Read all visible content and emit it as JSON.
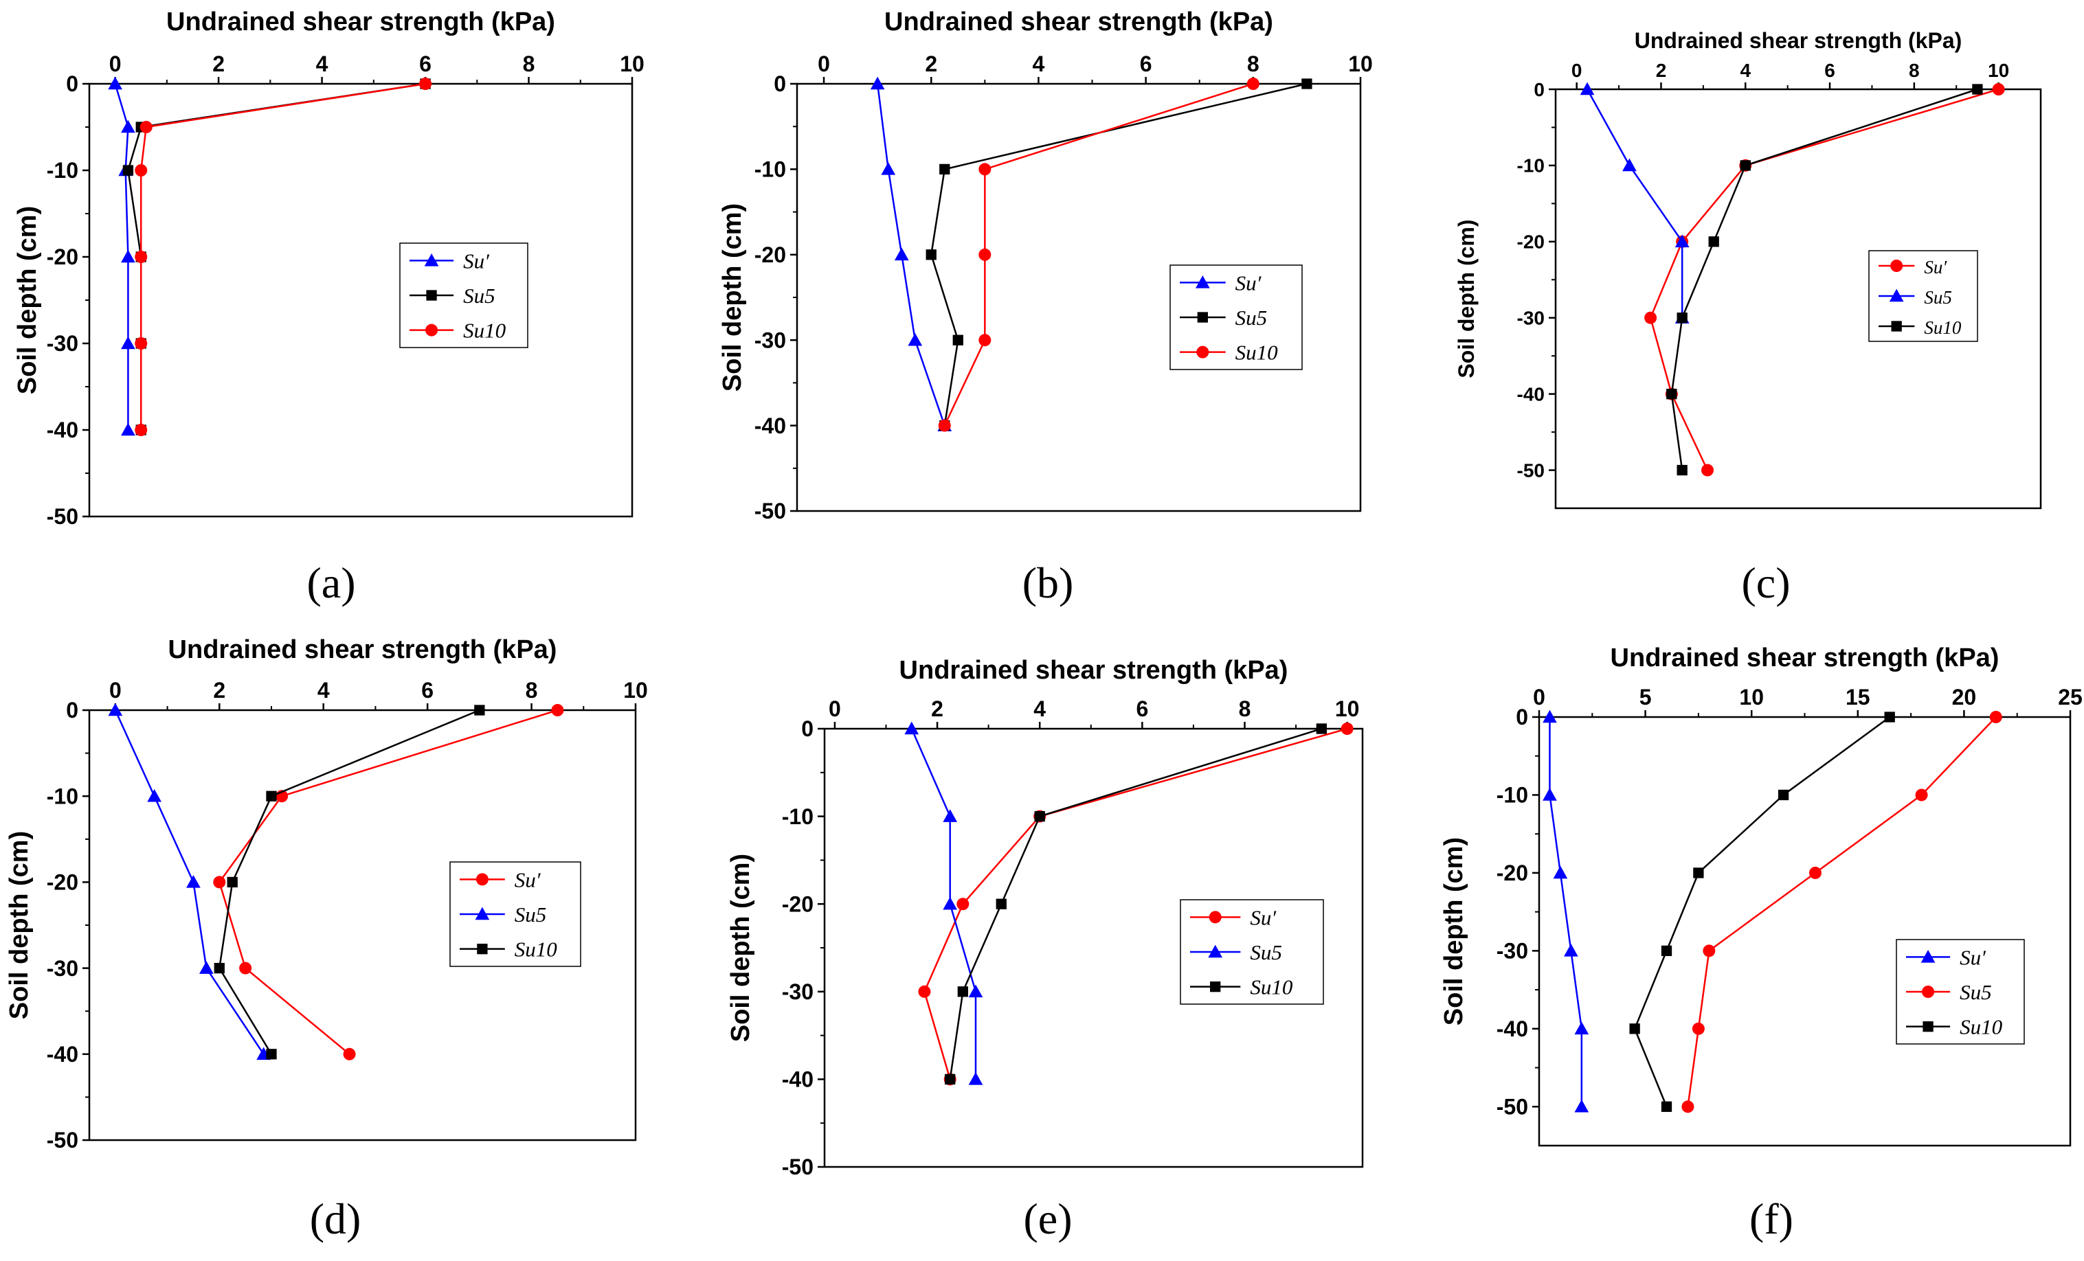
{
  "figure": {
    "colors": {
      "red": "#ff0000",
      "blue": "#0000ff",
      "black": "#000000"
    }
  },
  "chart_data": [
    {
      "panel": "a",
      "panel_label": "(a)",
      "type": "line",
      "title": "",
      "xlabel": "Undrained shear strength (kPa)",
      "ylabel": "Soil depth (cm)",
      "xlim": [
        -0.5,
        10
      ],
      "ylim": [
        -50,
        0
      ],
      "xticks": [
        0,
        2,
        4,
        6,
        8,
        10
      ],
      "yticks": [
        0,
        -10,
        -20,
        -30,
        -40,
        -50
      ],
      "legend": "middle-right",
      "series": [
        {
          "name": "Su′",
          "color": "#0000ff",
          "marker": "triangle",
          "x": [
            0,
            0.25,
            0.2,
            0.25,
            0.25,
            0.25
          ],
          "y": [
            0,
            -5,
            -10,
            -20,
            -30,
            -40
          ]
        },
        {
          "name": "Su5",
          "color": "#000000",
          "marker": "square",
          "x": [
            6,
            0.5,
            0.25,
            0.5,
            0.5,
            0.5
          ],
          "y": [
            0,
            -5,
            -10,
            -20,
            -30,
            -40
          ]
        },
        {
          "name": "Su10",
          "color": "#ff0000",
          "marker": "circle",
          "x": [
            6,
            0.6,
            0.5,
            0.5,
            0.5,
            0.5
          ],
          "y": [
            0,
            -5,
            -10,
            -20,
            -30,
            -40
          ]
        }
      ]
    },
    {
      "panel": "b",
      "panel_label": "(b)",
      "type": "line",
      "title": "",
      "xlabel": "Undrained shear strength (kPa)",
      "ylabel": "Soil depth (cm)",
      "xlim": [
        -0.5,
        10
      ],
      "ylim": [
        -50,
        0
      ],
      "xticks": [
        0,
        2,
        4,
        6,
        8,
        10
      ],
      "yticks": [
        0,
        -10,
        -20,
        -30,
        -40,
        -50
      ],
      "legend": "middle-right",
      "series": [
        {
          "name": "Su′",
          "color": "#0000ff",
          "marker": "triangle",
          "x": [
            1,
            1.2,
            1.45,
            1.7,
            2.25
          ],
          "y": [
            0,
            -10,
            -20,
            -30,
            -40
          ]
        },
        {
          "name": "Su5",
          "color": "#000000",
          "marker": "square",
          "x": [
            9,
            2.25,
            2,
            2.5,
            2.25
          ],
          "y": [
            0,
            -10,
            -20,
            -30,
            -40
          ]
        },
        {
          "name": "Su10",
          "color": "#ff0000",
          "marker": "circle",
          "x": [
            8,
            3,
            3,
            3,
            2.25
          ],
          "y": [
            0,
            -10,
            -20,
            -30,
            -40
          ]
        }
      ]
    },
    {
      "panel": "c",
      "panel_label": "(c)",
      "type": "line",
      "title": "",
      "xlabel": "Undrained shear strength (kPa)",
      "ylabel": "Soil depth (cm)",
      "xlim": [
        -0.5,
        11
      ],
      "ylim": [
        -55,
        0
      ],
      "xticks": [
        0,
        2,
        4,
        6,
        8,
        10
      ],
      "yticks": [
        0,
        -10,
        -20,
        -30,
        -40,
        -50
      ],
      "legend": "middle-right",
      "series": [
        {
          "name": "Su′",
          "color": "#ff0000",
          "marker": "circle",
          "x": [
            10,
            4,
            2.5,
            1.75,
            2.25,
            3.1
          ],
          "y": [
            0,
            -10,
            -20,
            -30,
            -40,
            -50
          ]
        },
        {
          "name": "Su5",
          "color": "#0000ff",
          "marker": "triangle",
          "x": [
            0.25,
            1.25,
            2.5,
            2.5
          ],
          "y": [
            0,
            -10,
            -20,
            -30
          ]
        },
        {
          "name": "Su10",
          "color": "#000000",
          "marker": "square",
          "x": [
            9.5,
            4,
            3.25,
            2.5,
            2.25,
            2.5
          ],
          "y": [
            0,
            -10,
            -20,
            -30,
            -40,
            -50
          ]
        }
      ]
    },
    {
      "panel": "d",
      "panel_label": "(d)",
      "type": "line",
      "title": "",
      "xlabel": "Undrained shear strength (kPa)",
      "ylabel": "Soil depth (cm)",
      "xlim": [
        -0.5,
        10
      ],
      "ylim": [
        -50,
        0
      ],
      "xticks": [
        0,
        2,
        4,
        6,
        8,
        10
      ],
      "yticks": [
        0,
        -10,
        -20,
        -30,
        -40,
        -50
      ],
      "legend": "middle-right",
      "series": [
        {
          "name": "Su′",
          "color": "#ff0000",
          "marker": "circle",
          "x": [
            8.5,
            3.2,
            2,
            2.5,
            4.5
          ],
          "y": [
            0,
            -10,
            -20,
            -30,
            -40
          ]
        },
        {
          "name": "Su5",
          "color": "#0000ff",
          "marker": "triangle",
          "x": [
            0,
            0.75,
            1.5,
            1.75,
            2.85
          ],
          "y": [
            0,
            -10,
            -20,
            -30,
            -40
          ]
        },
        {
          "name": "Su10",
          "color": "#000000",
          "marker": "square",
          "x": [
            7,
            3,
            2.25,
            2,
            3
          ],
          "y": [
            0,
            -10,
            -20,
            -30,
            -40
          ]
        }
      ]
    },
    {
      "panel": "e",
      "panel_label": "(e)",
      "type": "line",
      "title": "",
      "xlabel": "Undrained shear strength (kPa)",
      "ylabel": "Soil depth (cm)",
      "xlim": [
        -0.2,
        10.3
      ],
      "ylim": [
        -50,
        0
      ],
      "xticks": [
        0,
        2,
        4,
        6,
        8,
        10
      ],
      "yticks": [
        0,
        -10,
        -20,
        -30,
        -40,
        -50
      ],
      "legend": "bottom-right",
      "series": [
        {
          "name": "Su′",
          "color": "#ff0000",
          "marker": "circle",
          "x": [
            10,
            4,
            2.5,
            1.75,
            2.25
          ],
          "y": [
            0,
            -10,
            -20,
            -30,
            -40
          ]
        },
        {
          "name": "Su5",
          "color": "#0000ff",
          "marker": "triangle",
          "x": [
            1.5,
            2.25,
            2.25,
            2.75,
            2.75
          ],
          "y": [
            0,
            -10,
            -20,
            -30,
            -40
          ]
        },
        {
          "name": "Su10",
          "color": "#000000",
          "marker": "square",
          "x": [
            9.5,
            4,
            3.25,
            2.5,
            2.25
          ],
          "y": [
            0,
            -10,
            -20,
            -30,
            -40
          ]
        }
      ]
    },
    {
      "panel": "f",
      "panel_label": "(f)",
      "type": "line",
      "title": "",
      "xlabel": "Undrained shear strength (kPa)",
      "ylabel": "Soil depth (cm)",
      "xlim": [
        0,
        25
      ],
      "ylim": [
        -55,
        0
      ],
      "xticks": [
        0,
        5,
        10,
        15,
        20,
        25
      ],
      "yticks": [
        0,
        -10,
        -20,
        -30,
        -40,
        -50
      ],
      "legend": "bottom-right",
      "series": [
        {
          "name": "Su′",
          "color": "#0000ff",
          "marker": "triangle",
          "x": [
            0.5,
            0.5,
            1,
            1.5,
            2,
            2
          ],
          "y": [
            0,
            -10,
            -20,
            -30,
            -40,
            -50
          ]
        },
        {
          "name": "Su5",
          "color": "#ff0000",
          "marker": "circle",
          "x": [
            21.5,
            18,
            13,
            8,
            7.5,
            7
          ],
          "y": [
            0,
            -10,
            -20,
            -30,
            -40,
            -50
          ]
        },
        {
          "name": "Su10",
          "color": "#000000",
          "marker": "square",
          "x": [
            16.5,
            11.5,
            7.5,
            6,
            4.5,
            6
          ],
          "y": [
            0,
            -10,
            -20,
            -30,
            -40,
            -50
          ]
        }
      ]
    }
  ]
}
